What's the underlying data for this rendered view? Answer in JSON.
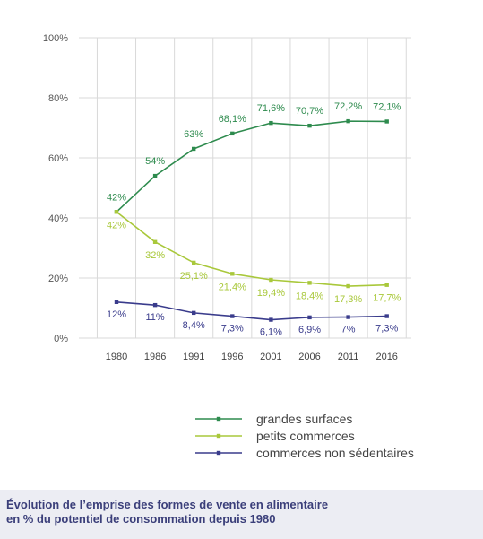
{
  "chart_data": {
    "type": "line",
    "x": [
      "1980",
      "1986",
      "1991",
      "1996",
      "2001",
      "2006",
      "2011",
      "2016"
    ],
    "ylim": [
      0,
      100
    ],
    "yticks": [
      0,
      20,
      40,
      60,
      80,
      100
    ],
    "ytick_labels": [
      "0%",
      "20%",
      "40%",
      "60%",
      "80%",
      "100%"
    ],
    "grid": true,
    "legend_position": "bottom-right",
    "series": [
      {
        "name": "grandes surfaces",
        "color": "#2e8b4e",
        "values": [
          42,
          54,
          63,
          68.1,
          71.6,
          70.7,
          72.2,
          72.1
        ],
        "labels": [
          "42%",
          "54%",
          "63%",
          "68,1%",
          "71,6%",
          "70,7%",
          "72,2%",
          "72,1%"
        ]
      },
      {
        "name": "petits commerces",
        "color": "#a9c83b",
        "values": [
          42,
          32,
          25.1,
          21.4,
          19.4,
          18.4,
          17.3,
          17.7
        ],
        "labels": [
          "42%",
          "32%",
          "25,1%",
          "21,4%",
          "19,4%",
          "18,4%",
          "17,3%",
          "17,7%"
        ]
      },
      {
        "name": "commerces non sédentaires",
        "color": "#3a3c8c",
        "values": [
          12,
          11,
          8.4,
          7.3,
          6.1,
          6.9,
          7,
          7.3
        ],
        "labels": [
          "12%",
          "11%",
          "8,4%",
          "7,3%",
          "6,1%",
          "6,9%",
          "7%",
          "7,3%"
        ]
      }
    ]
  },
  "caption": {
    "line1": "Évolution de l’emprise des formes de vente en alimentaire",
    "line2": "en % du potentiel de consommation depuis 1980"
  }
}
